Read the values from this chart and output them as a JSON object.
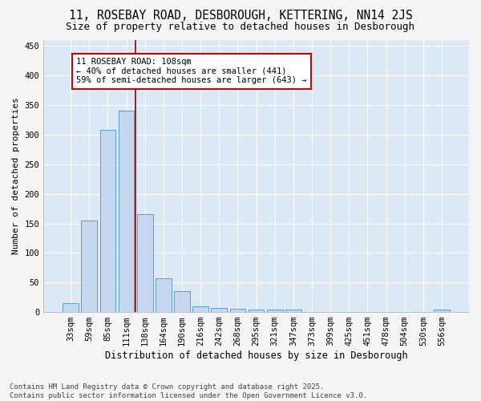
{
  "title": "11, ROSEBAY ROAD, DESBOROUGH, KETTERING, NN14 2JS",
  "subtitle": "Size of property relative to detached houses in Desborough",
  "xlabel": "Distribution of detached houses by size in Desborough",
  "ylabel": "Number of detached properties",
  "categories": [
    "33sqm",
    "59sqm",
    "85sqm",
    "111sqm",
    "138sqm",
    "164sqm",
    "190sqm",
    "216sqm",
    "242sqm",
    "268sqm",
    "295sqm",
    "321sqm",
    "347sqm",
    "373sqm",
    "399sqm",
    "425sqm",
    "451sqm",
    "478sqm",
    "504sqm",
    "530sqm",
    "556sqm"
  ],
  "values": [
    15,
    155,
    308,
    340,
    165,
    57,
    35,
    10,
    7,
    5,
    4,
    4,
    4,
    0,
    0,
    0,
    0,
    0,
    0,
    0,
    4
  ],
  "bar_color": "#c5d8ef",
  "bar_edge_color": "#5b9bd5",
  "background_color": "#dce9f5",
  "grid_color": "#ffffff",
  "vline_x": 3.5,
  "vline_color": "#8b0000",
  "annotation_text": "11 ROSEBAY ROAD: 108sqm\n← 40% of detached houses are smaller (441)\n59% of semi-detached houses are larger (643) →",
  "annotation_box_color": "#ffffff",
  "annotation_box_edge": "#cc0000",
  "ylim": [
    0,
    460
  ],
  "yticks": [
    0,
    50,
    100,
    150,
    200,
    250,
    300,
    350,
    400,
    450
  ],
  "footnote": "Contains HM Land Registry data © Crown copyright and database right 2025.\nContains public sector information licensed under the Open Government Licence v3.0.",
  "title_fontsize": 10.5,
  "subtitle_fontsize": 9,
  "xlabel_fontsize": 8.5,
  "ylabel_fontsize": 8,
  "tick_fontsize": 7.5,
  "annotation_fontsize": 7.5,
  "footnote_fontsize": 6.5,
  "fig_bg": "#f5f5f5"
}
